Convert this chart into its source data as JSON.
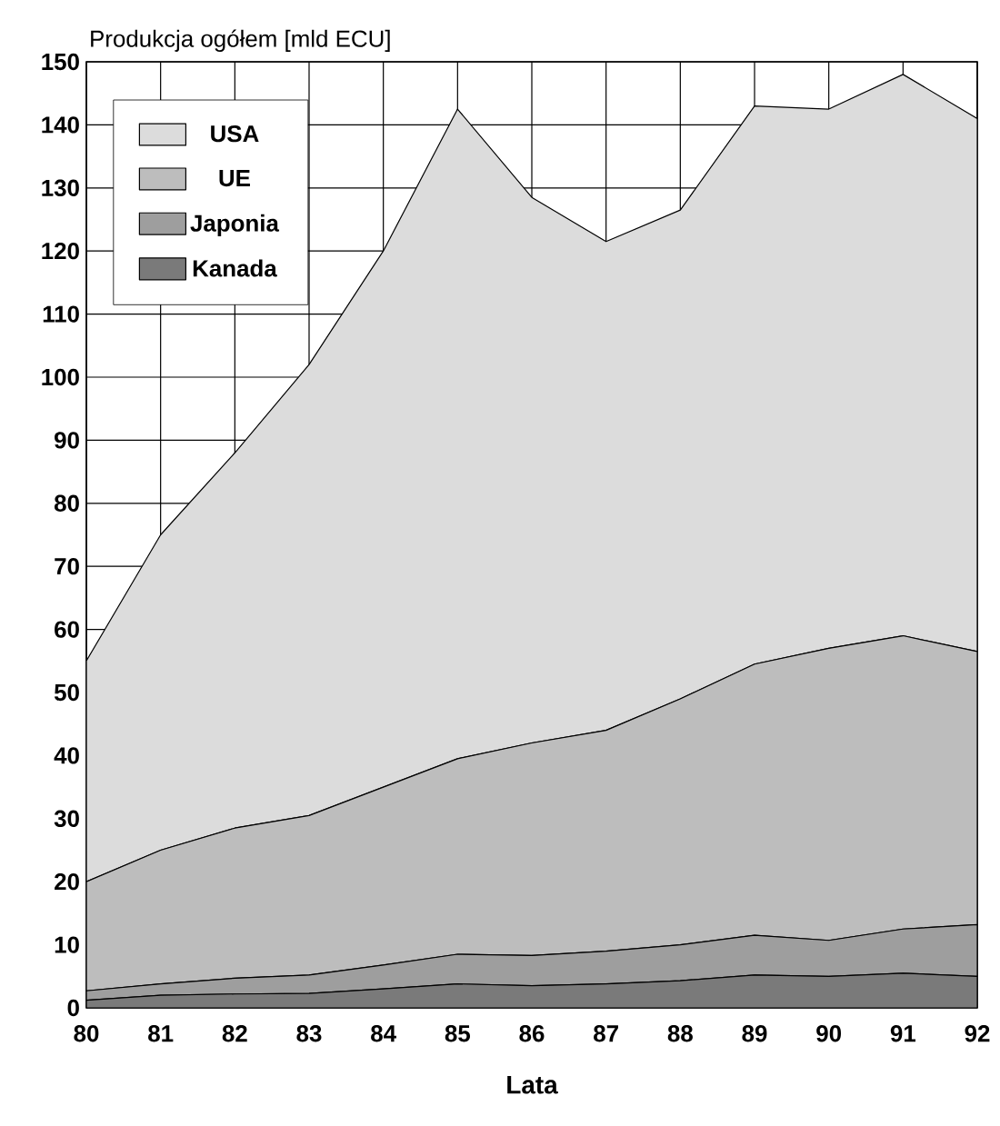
{
  "chart_data": {
    "type": "area",
    "stacked": true,
    "ylabel": "Produkcja ogółem [mld ECU]",
    "xlabel": "Lata",
    "x": [
      80,
      81,
      82,
      83,
      84,
      85,
      86,
      87,
      88,
      89,
      90,
      91,
      92
    ],
    "xlim": [
      80,
      92
    ],
    "xticks": [
      80,
      81,
      82,
      83,
      84,
      85,
      86,
      87,
      88,
      89,
      90,
      91,
      92
    ],
    "ylim": [
      0,
      150
    ],
    "yticks": [
      0,
      10,
      20,
      30,
      40,
      50,
      60,
      70,
      80,
      90,
      100,
      110,
      120,
      130,
      140,
      150
    ],
    "grid": true,
    "legend": "top left",
    "series": [
      {
        "name": "Kanada",
        "color": "#7a7a7a",
        "values": [
          1.2,
          2,
          2.2,
          2.3,
          3,
          3.8,
          3.5,
          3.8,
          4.3,
          5.2,
          5,
          5.5,
          5
        ]
      },
      {
        "name": "Japonia",
        "color": "#9e9e9e",
        "values": [
          1.5,
          1.8,
          2.5,
          2.9,
          3.8,
          4.7,
          4.8,
          5.2,
          5.7,
          6.3,
          5.7,
          7.0,
          8.2
        ]
      },
      {
        "name": "UE",
        "color": "#bdbdbd",
        "values": [
          17.3,
          21.2,
          23.8,
          25.3,
          28.2,
          31.0,
          33.7,
          35.0,
          39.0,
          43.0,
          46.3,
          46.5,
          43.3
        ]
      },
      {
        "name": "USA",
        "color": "#dcdcdc",
        "values": [
          35,
          50,
          59.5,
          71.5,
          85,
          103,
          86.5,
          77.5,
          77.5,
          88.5,
          85.5,
          89,
          84.5
        ]
      }
    ]
  }
}
